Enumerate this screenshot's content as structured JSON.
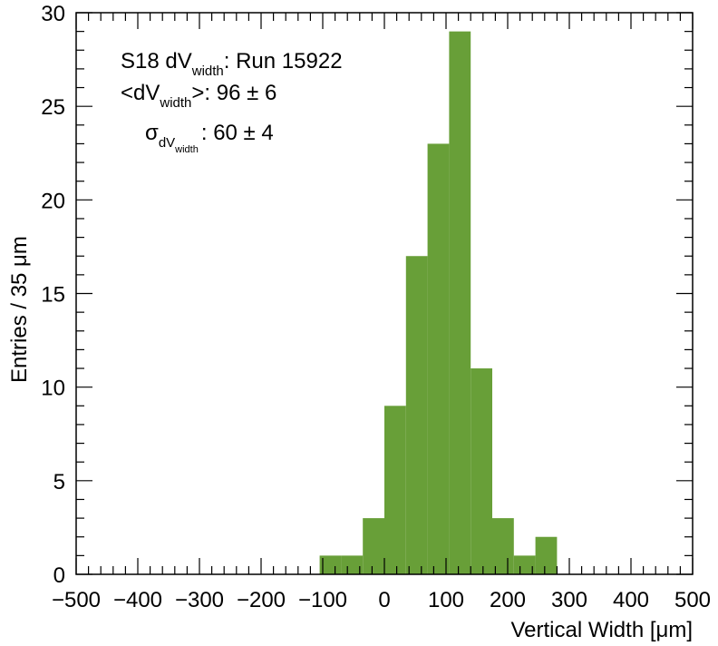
{
  "chart_data": {
    "type": "bar",
    "xlabel": "Vertical Width [μm]",
    "ylabel": "Entries / 35 μm",
    "xlim": [
      -500,
      500
    ],
    "ylim": [
      0,
      30
    ],
    "x_ticks": [
      -500,
      -400,
      -300,
      -200,
      -100,
      0,
      100,
      200,
      300,
      400,
      500
    ],
    "x_tick_labels": [
      "−500",
      "−400",
      "−300",
      "−200",
      "−100",
      "0",
      "100",
      "200",
      "300",
      "400",
      "500"
    ],
    "y_ticks": [
      0,
      5,
      10,
      15,
      20,
      25,
      30
    ],
    "y_tick_labels": [
      "0",
      "5",
      "10",
      "15",
      "20",
      "25",
      "30"
    ],
    "bin_width": 35,
    "bins": [
      {
        "x0": -105,
        "x1": -70,
        "value": 1
      },
      {
        "x0": -70,
        "x1": -35,
        "value": 1
      },
      {
        "x0": -35,
        "x1": 0,
        "value": 3
      },
      {
        "x0": 0,
        "x1": 35,
        "value": 9
      },
      {
        "x0": 35,
        "x1": 70,
        "value": 17
      },
      {
        "x0": 70,
        "x1": 105,
        "value": 23
      },
      {
        "x0": 105,
        "x1": 140,
        "value": 29
      },
      {
        "x0": 140,
        "x1": 175,
        "value": 11
      },
      {
        "x0": 175,
        "x1": 210,
        "value": 3
      },
      {
        "x0": 210,
        "x1": 245,
        "value": 1
      },
      {
        "x0": 245,
        "x1": 280,
        "value": 2
      }
    ],
    "bar_color": "#689f38",
    "annotations": {
      "line1": {
        "main": "S18 dV",
        "sub": "width",
        "rest": ": Run 15922"
      },
      "line2": {
        "pre": "<dV",
        "sub": "width",
        "rest": ">: 96 ± 6"
      },
      "line3": {
        "main": "σ",
        "sub": "dV",
        "subsub": "width",
        "rest": ": 60 ± 4"
      }
    },
    "grid": false,
    "legend": "none"
  }
}
